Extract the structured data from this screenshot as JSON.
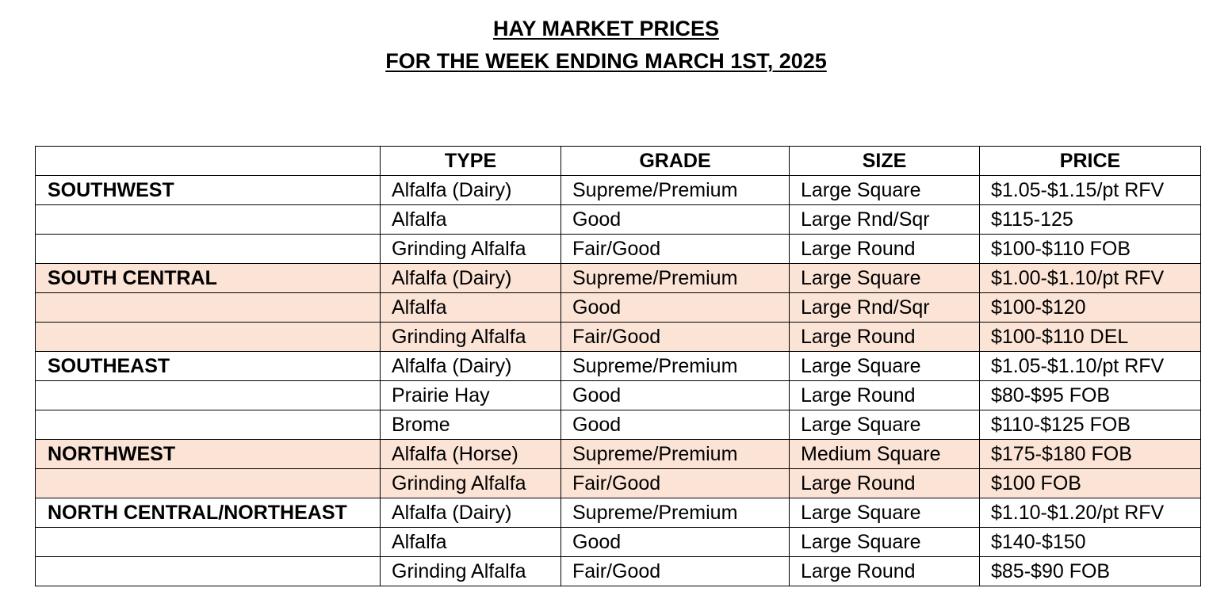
{
  "title": {
    "line1": "HAY MARKET PRICES",
    "line2": "FOR THE WEEK ENDING MARCH 1ST, 2025"
  },
  "colors": {
    "shade": "#fbe3d6",
    "border": "#000000"
  },
  "table": {
    "headers": [
      "",
      "TYPE",
      "GRADE",
      "SIZE",
      "PRICE"
    ],
    "rows": [
      {
        "region": "SOUTHWEST",
        "type": "Alfalfa (Dairy)",
        "grade": "Supreme/Premium",
        "size": "Large Square",
        "price": "$1.05-$1.15/pt RFV",
        "shaded": false
      },
      {
        "region": "",
        "type": "Alfalfa",
        "grade": "Good",
        "size": "Large Rnd/Sqr",
        "price": "$115-125",
        "shaded": false
      },
      {
        "region": "",
        "type": "Grinding Alfalfa",
        "grade": "Fair/Good",
        "size": "Large Round",
        "price": "$100-$110 FOB",
        "shaded": false
      },
      {
        "region": "SOUTH CENTRAL",
        "type": "Alfalfa (Dairy)",
        "grade": "Supreme/Premium",
        "size": "Large Square",
        "price": "$1.00-$1.10/pt RFV",
        "shaded": true
      },
      {
        "region": "",
        "type": "Alfalfa",
        "grade": "Good",
        "size": "Large Rnd/Sqr",
        "price": "$100-$120",
        "shaded": true
      },
      {
        "region": "",
        "type": "Grinding Alfalfa",
        "grade": "Fair/Good",
        "size": "Large Round",
        "price": "$100-$110 DEL",
        "shaded": true
      },
      {
        "region": "SOUTHEAST",
        "type": "Alfalfa (Dairy)",
        "grade": "Supreme/Premium",
        "size": "Large Square",
        "price": "$1.05-$1.10/pt RFV",
        "shaded": false
      },
      {
        "region": "",
        "type": "Prairie Hay",
        "grade": "Good",
        "size": "Large Round",
        "price": "$80-$95 FOB",
        "shaded": false
      },
      {
        "region": "",
        "type": "Brome",
        "grade": "Good",
        "size": "Large Square",
        "price": "$110-$125 FOB",
        "shaded": false
      },
      {
        "region": "NORTHWEST",
        "type": "Alfalfa (Horse)",
        "grade": "Supreme/Premium",
        "size": "Medium Square",
        "price": "$175-$180 FOB",
        "shaded": true
      },
      {
        "region": "",
        "type": "Grinding Alfalfa",
        "grade": "Fair/Good",
        "size": "Large Round",
        "price": "$100 FOB",
        "shaded": true
      },
      {
        "region": "NORTH CENTRAL/NORTHEAST",
        "type": "Alfalfa (Dairy)",
        "grade": "Supreme/Premium",
        "size": "Large Square",
        "price": "$1.10-$1.20/pt RFV",
        "shaded": false
      },
      {
        "region": "",
        "type": "Alfalfa",
        "grade": "Good",
        "size": "Large Square",
        "price": "$140-$150",
        "shaded": false
      },
      {
        "region": "",
        "type": "Grinding Alfalfa",
        "grade": "Fair/Good",
        "size": "Large Round",
        "price": "$85-$90 FOB",
        "shaded": false
      }
    ]
  }
}
